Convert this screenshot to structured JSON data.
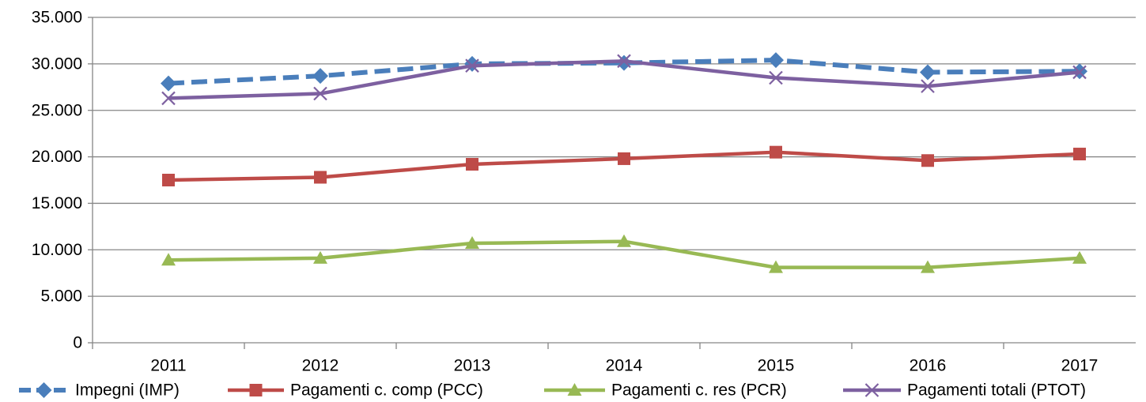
{
  "chart_data": {
    "type": "line",
    "categories": [
      "2011",
      "2012",
      "2013",
      "2014",
      "2015",
      "2016",
      "2017"
    ],
    "series": [
      {
        "name": "Impegni (IMP)",
        "color": "#4a7ebb",
        "marker": "diamond",
        "dashed": true,
        "values": [
          27900,
          28700,
          30000,
          30100,
          30400,
          29100,
          29200
        ]
      },
      {
        "name": "Pagamenti c. comp (PCC)",
        "color": "#be4b48",
        "marker": "square",
        "dashed": false,
        "values": [
          17500,
          17800,
          19200,
          19800,
          20500,
          19600,
          20300
        ]
      },
      {
        "name": "Pagamenti c. res (PCR)",
        "color": "#98b954",
        "marker": "triangle",
        "dashed": false,
        "values": [
          8900,
          9100,
          10700,
          10900,
          8100,
          8100,
          9100
        ]
      },
      {
        "name": "Pagamenti totali (PTOT)",
        "color": "#7d60a0",
        "marker": "x",
        "dashed": false,
        "values": [
          26300,
          26800,
          29800,
          30300,
          28500,
          27600,
          29100
        ]
      }
    ],
    "ylim": [
      0,
      35000
    ],
    "yticks": [
      0,
      {
        "value": 5000,
        "label": "5.000"
      },
      {
        "value": 10000,
        "label": "10.000"
      },
      {
        "value": 15000,
        "label": "15.000"
      },
      {
        "value": 20000,
        "label": "20.000"
      },
      {
        "value": 25000,
        "label": "25.000"
      },
      {
        "value": 30000,
        "label": "30.000"
      },
      {
        "value": 35000,
        "label": "35.000"
      }
    ],
    "grid": true,
    "legend": "bottom"
  }
}
